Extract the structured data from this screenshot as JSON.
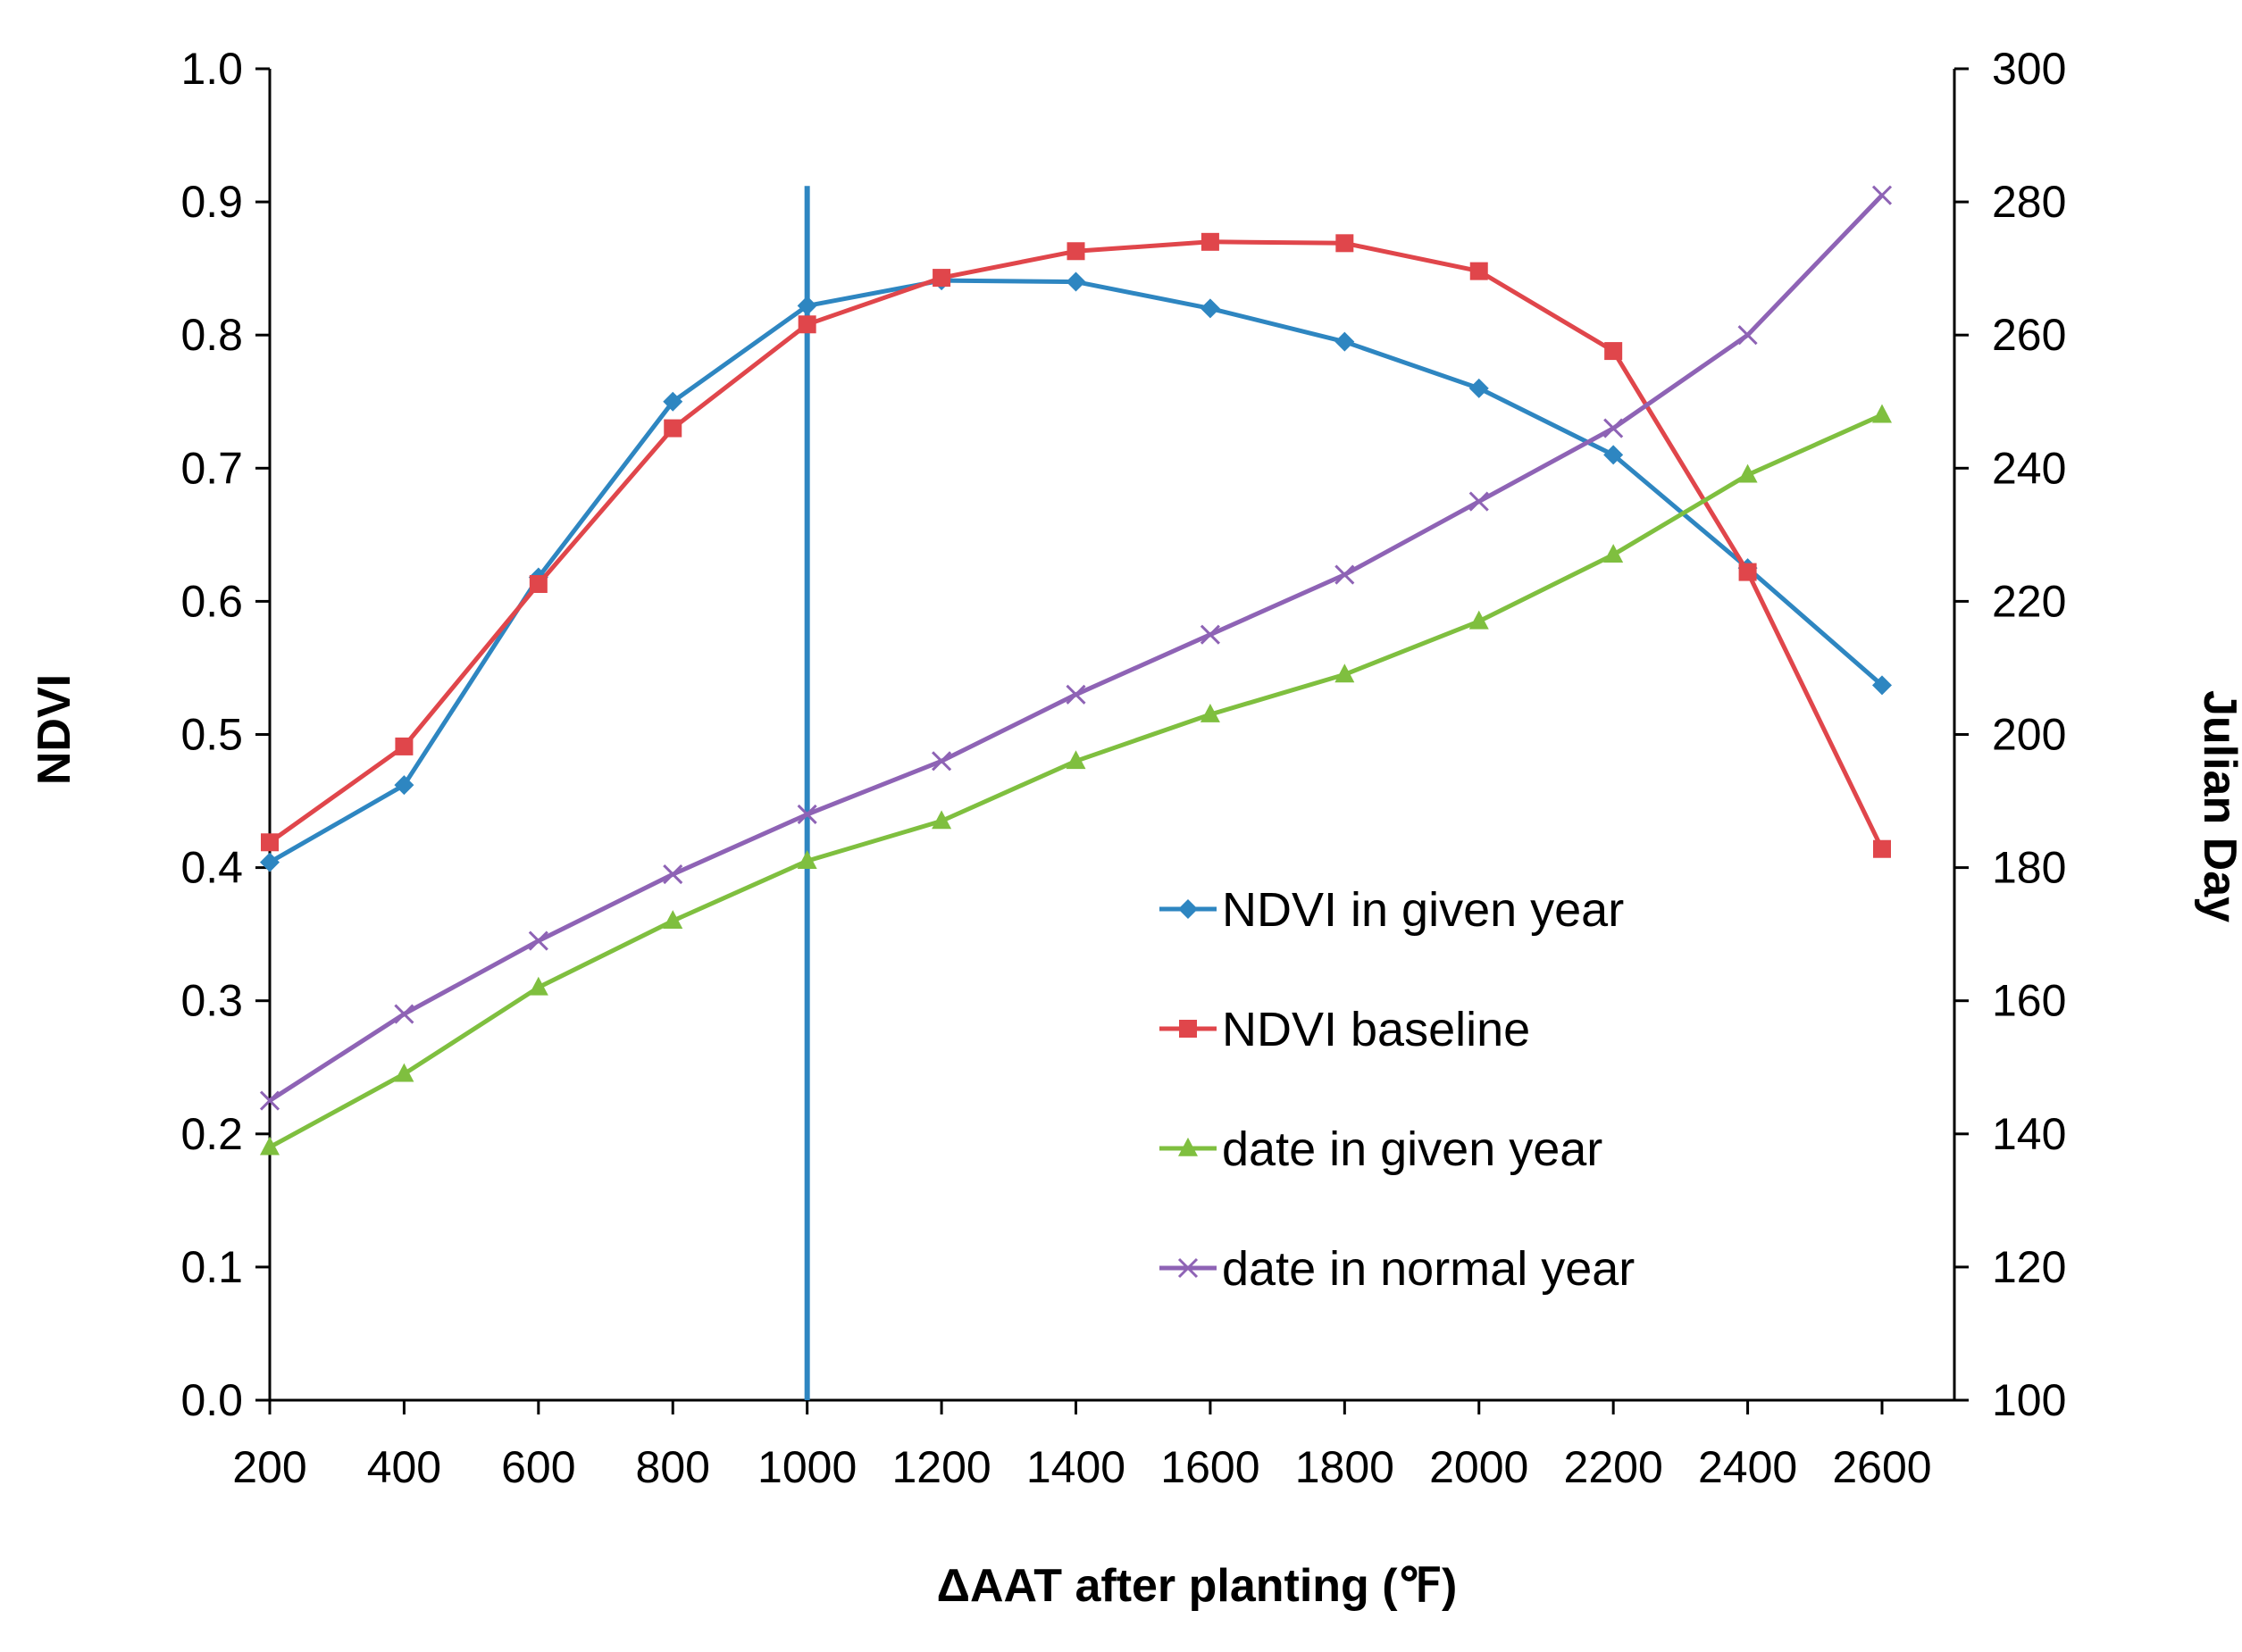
{
  "chart_data": {
    "type": "line",
    "title": "",
    "xlabel": "ΔAAT after planting (℉)",
    "ylabel": "NDVI",
    "y2label": "Julian Day",
    "x": [
      200,
      400,
      600,
      800,
      1000,
      1200,
      1400,
      1600,
      1800,
      2000,
      2200,
      2400,
      2600
    ],
    "x_tick_labels": [
      "200",
      "400",
      "600",
      "800",
      "1000",
      "1200",
      "1400",
      "1600",
      "1800",
      "2000",
      "2200",
      "2400",
      "2600"
    ],
    "ylim": [
      0,
      1.0
    ],
    "y_tick_labels": [
      "0.0",
      "0.1",
      "0.2",
      "0.3",
      "0.4",
      "0.5",
      "0.6",
      "0.7",
      "0.8",
      "0.9",
      "1.0"
    ],
    "y2lim": [
      100,
      300
    ],
    "y2_tick_labels": [
      "100",
      "120",
      "140",
      "160",
      "180",
      "200",
      "220",
      "240",
      "260",
      "280",
      "300"
    ],
    "vertical_line": {
      "x": 1000,
      "y_top": 0.912,
      "color": "#2e86c1"
    },
    "legend_position": "center-right",
    "grid": false,
    "series": [
      {
        "name": "NDVI in given year",
        "axis": "left",
        "marker": "diamond",
        "color": "#2e86c1",
        "values": [
          0.404,
          0.462,
          0.618,
          0.75,
          0.822,
          0.841,
          0.84,
          0.82,
          0.795,
          0.76,
          0.71,
          0.625,
          0.537
        ]
      },
      {
        "name": "NDVI baseline",
        "axis": "left",
        "marker": "square",
        "color": "#e0464b",
        "values": [
          0.419,
          0.491,
          0.613,
          0.73,
          0.808,
          0.843,
          0.863,
          0.87,
          0.869,
          0.848,
          0.788,
          0.622,
          0.414
        ]
      },
      {
        "name": "date in given year",
        "axis": "right",
        "marker": "triangle",
        "color": "#7fbf3f",
        "values": [
          138,
          149,
          162,
          172,
          181,
          187,
          196,
          203,
          209,
          217,
          227,
          239,
          248
        ]
      },
      {
        "name": "date in normal year",
        "axis": "right",
        "marker": "x",
        "color": "#8e63b5",
        "values": [
          145,
          158,
          169,
          179,
          188,
          196,
          206,
          215,
          224,
          235,
          246,
          260,
          281
        ]
      }
    ]
  }
}
